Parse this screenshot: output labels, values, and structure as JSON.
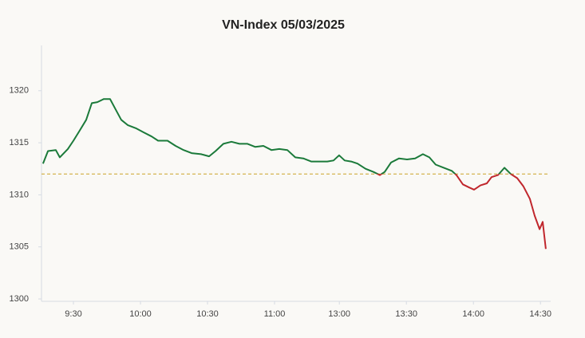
{
  "chart_data": {
    "type": "line",
    "title": "VN-Index 05/03/2025",
    "xlim": [
      0,
      229
    ],
    "ylim": [
      1300,
      1324.5
    ],
    "yticks": [
      1300,
      1305,
      1310,
      1315,
      1320
    ],
    "xticks": [
      {
        "value": 15,
        "label": "9:30"
      },
      {
        "value": 45,
        "label": "10:00"
      },
      {
        "value": 75,
        "label": "10:30"
      },
      {
        "value": 105,
        "label": "11:00"
      },
      {
        "value": 134,
        "label": "13:00"
      },
      {
        "value": 164,
        "label": "13:30"
      },
      {
        "value": 194,
        "label": "14:00"
      },
      {
        "value": 224,
        "label": "14:30"
      }
    ],
    "reference_line": {
      "value": 1312,
      "color": "#c9a227"
    },
    "color_above": "#1b7a3a",
    "color_below": "#c0272d",
    "x": [
      1.4,
      3.6,
      7.1,
      8.9,
      12.5,
      15,
      17.9,
      20.7,
      23.2,
      25.7,
      28.6,
      31.4,
      33.9,
      36.4,
      39.3,
      42.9,
      46.4,
      50,
      52.9,
      57.1,
      60.7,
      64.3,
      67.9,
      72.1,
      75.7,
      78.6,
      82.1,
      85.7,
      89.3,
      92.9,
      96.4,
      100,
      103.6,
      107.1,
      110.7,
      114.3,
      117.9,
      121.4,
      125,
      128.6,
      131.4,
      133.9,
      136.4,
      139.3,
      142.1,
      145.7,
      149.3,
      152.1,
      154.3,
      157.1,
      160.7,
      164.3,
      167.9,
      171.4,
      174.3,
      177.1,
      180.7,
      184.3,
      186.4,
      189.3,
      192.1,
      194.3,
      197.1,
      200,
      202.1,
      205,
      207.9,
      210.7,
      213.6,
      216.4,
      219.3,
      221.4,
      223.6,
      225,
      226.4
    ],
    "values": [
      1313.0,
      1314.2,
      1314.3,
      1313.6,
      1314.4,
      1315.2,
      1316.2,
      1317.2,
      1318.8,
      1318.9,
      1319.2,
      1319.2,
      1318.2,
      1317.2,
      1316.7,
      1316.4,
      1316.0,
      1315.6,
      1315.2,
      1315.2,
      1314.7,
      1314.3,
      1314.0,
      1313.9,
      1313.7,
      1314.2,
      1314.9,
      1315.1,
      1314.9,
      1314.9,
      1314.6,
      1314.7,
      1314.3,
      1314.4,
      1314.3,
      1313.6,
      1313.5,
      1313.2,
      1313.2,
      1313.2,
      1313.3,
      1313.8,
      1313.3,
      1313.2,
      1313.0,
      1312.5,
      1312.2,
      1311.9,
      1312.2,
      1313.1,
      1313.5,
      1313.4,
      1313.5,
      1313.9,
      1313.6,
      1312.9,
      1312.6,
      1312.3,
      1311.9,
      1311.0,
      1310.7,
      1310.5,
      1310.9,
      1311.1,
      1311.7,
      1311.9,
      1312.6,
      1312.0,
      1311.6,
      1310.8,
      1309.6,
      1308.0,
      1306.7,
      1307.4,
      1304.8
    ]
  }
}
